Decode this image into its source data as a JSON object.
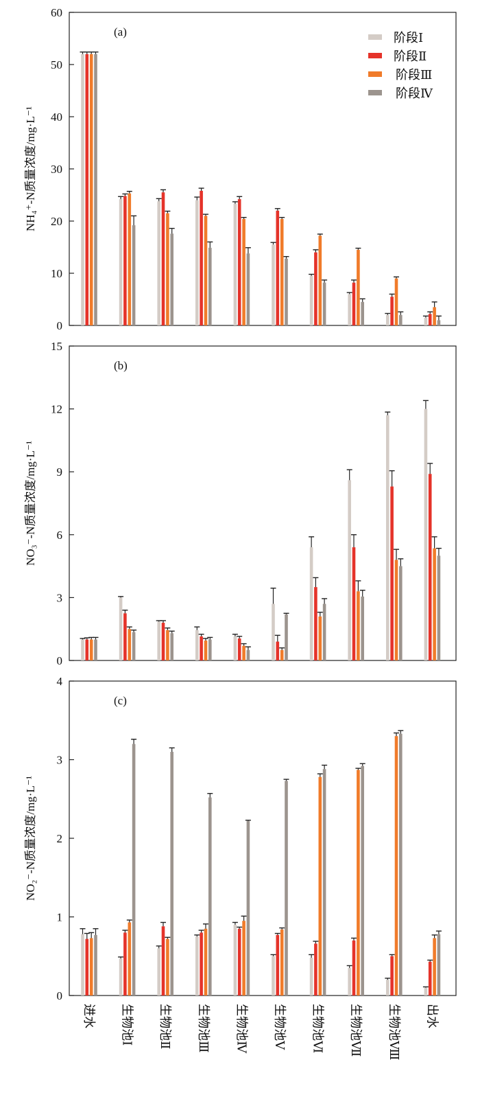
{
  "chart_data": [
    {
      "type": "bar",
      "panel_label": "(a)",
      "ylabel": "NH₄⁺-N质量浓度/mg·L⁻¹",
      "ylim": [
        0,
        60
      ],
      "yticks": [
        "0",
        "10",
        "20",
        "30",
        "40",
        "50",
        "60"
      ],
      "categories": [
        "进水",
        "生物池Ⅰ",
        "生物池Ⅱ",
        "生物池Ⅲ",
        "生物池Ⅳ",
        "生物池Ⅴ",
        "生物池Ⅵ",
        "生物池Ⅶ",
        "生物池Ⅷ",
        "出水"
      ],
      "legend": "top-right",
      "series": [
        {
          "name": "阶段Ⅰ",
          "color": "#d4ccc6",
          "values": [
            52,
            24.2,
            23.8,
            24,
            23.3,
            15.5,
            9.5,
            6,
            2,
            1.5
          ],
          "errors": [
            0.4,
            0.5,
            0.5,
            0.6,
            0.4,
            0.4,
            0.3,
            0.3,
            0.3,
            0.3
          ]
        },
        {
          "name": "阶段Ⅱ",
          "color": "#e5332a",
          "values": [
            52,
            24.8,
            25.5,
            25.8,
            24.2,
            22,
            14,
            8.2,
            5.5,
            2.2
          ],
          "errors": [
            0.4,
            0.4,
            0.5,
            0.5,
            0.5,
            0.4,
            0.5,
            0.5,
            0.5,
            0.4
          ]
        },
        {
          "name": "阶段Ⅲ",
          "color": "#f07b2a",
          "values": [
            52,
            25.3,
            21.5,
            21,
            20.4,
            20.4,
            17.2,
            14.5,
            9,
            3.5
          ],
          "errors": [
            0.4,
            0.4,
            0.4,
            0.3,
            0.3,
            0.3,
            0.3,
            0.3,
            0.3,
            1
          ]
        },
        {
          "name": "阶段Ⅳ",
          "color": "#9c948e",
          "values": [
            52,
            19.2,
            17.6,
            14.9,
            13.8,
            12.8,
            8.2,
            4.5,
            2,
            1
          ],
          "errors": [
            0.4,
            1.8,
            1,
            1.1,
            1.1,
            0.4,
            0.5,
            0.6,
            0.6,
            0.8
          ]
        }
      ]
    },
    {
      "type": "bar",
      "panel_label": "(b)",
      "ylabel": "NO₃⁻-N质量浓度/mg·L⁻¹",
      "ylim": [
        0,
        15
      ],
      "yticks": [
        "0",
        "3",
        "6",
        "9",
        "12",
        "15"
      ],
      "categories": [
        "进水",
        "生物池Ⅰ",
        "生物池Ⅱ",
        "生物池Ⅲ",
        "生物池Ⅳ",
        "生物池Ⅴ",
        "生物池Ⅵ",
        "生物池Ⅶ",
        "生物池Ⅷ",
        "出水"
      ],
      "series": [
        {
          "name": "阶段Ⅰ",
          "color": "#d4ccc6",
          "values": [
            1.0,
            3.0,
            1.85,
            1.45,
            1.15,
            2.7,
            5.4,
            8.6,
            11.7,
            12.0
          ],
          "errors": [
            0.05,
            0.05,
            0.05,
            0.15,
            0.1,
            0.75,
            0.5,
            0.5,
            0.15,
            0.4
          ]
        },
        {
          "name": "阶段Ⅱ",
          "color": "#e5332a",
          "values": [
            1.0,
            2.25,
            1.8,
            1.15,
            1.05,
            0.9,
            3.5,
            5.4,
            8.3,
            8.9
          ],
          "errors": [
            0.08,
            0.15,
            0.1,
            0.1,
            0.1,
            0.3,
            0.45,
            0.6,
            0.75,
            0.5
          ]
        },
        {
          "name": "阶段Ⅲ",
          "color": "#f07b2a",
          "values": [
            1.0,
            1.5,
            1.45,
            0.95,
            0.7,
            0.5,
            2.1,
            3.3,
            4.8,
            5.35
          ],
          "errors": [
            0.1,
            0.1,
            0.1,
            0.1,
            0.1,
            0.1,
            0.2,
            0.5,
            0.5,
            0.55
          ]
        },
        {
          "name": "阶段Ⅳ",
          "color": "#9c948e",
          "values": [
            1.0,
            1.35,
            1.3,
            1.0,
            0.5,
            2.2,
            2.7,
            3.05,
            4.5,
            5.0
          ],
          "errors": [
            0.1,
            0.1,
            0.1,
            0.1,
            0.15,
            0.05,
            0.25,
            0.3,
            0.35,
            0.35
          ]
        }
      ]
    },
    {
      "type": "bar",
      "panel_label": "(c)",
      "ylabel": "NO₂⁻-N质量浓度/mg·L⁻¹",
      "ylim": [
        0,
        4
      ],
      "yticks": [
        "0",
        "1",
        "2",
        "3",
        "4"
      ],
      "categories": [
        "进水",
        "生物池Ⅰ",
        "生物池Ⅱ",
        "生物池Ⅲ",
        "生物池Ⅳ",
        "生物池Ⅴ",
        "生物池Ⅵ",
        "生物池Ⅶ",
        "生物池Ⅷ",
        "出水"
      ],
      "series": [
        {
          "name": "阶段Ⅰ",
          "color": "#d4ccc6",
          "values": [
            0.78,
            0.47,
            0.6,
            0.75,
            0.9,
            0.5,
            0.48,
            0.35,
            0.2,
            0.1
          ],
          "errors": [
            0.07,
            0.02,
            0.03,
            0.02,
            0.03,
            0.02,
            0.04,
            0.03,
            0.02,
            0.01
          ]
        },
        {
          "name": "阶段Ⅱ",
          "color": "#e5332a",
          "values": [
            0.72,
            0.8,
            0.88,
            0.8,
            0.85,
            0.77,
            0.66,
            0.7,
            0.5,
            0.43
          ],
          "errors": [
            0.07,
            0.03,
            0.05,
            0.03,
            0.02,
            0.02,
            0.03,
            0.03,
            0.02,
            0.02
          ]
        },
        {
          "name": "阶段Ⅲ",
          "color": "#f07b2a",
          "values": [
            0.73,
            0.93,
            0.72,
            0.85,
            0.95,
            0.84,
            2.78,
            2.87,
            3.3,
            0.73
          ],
          "errors": [
            0.07,
            0.03,
            0.02,
            0.06,
            0.06,
            0.02,
            0.04,
            0.02,
            0.04,
            0.04
          ]
        },
        {
          "name": "阶段Ⅳ",
          "color": "#9c948e",
          "values": [
            0.77,
            3.2,
            3.1,
            2.52,
            2.22,
            2.73,
            2.88,
            2.92,
            3.33,
            0.78
          ],
          "errors": [
            0.08,
            0.06,
            0.05,
            0.05,
            0.01,
            0.02,
            0.05,
            0.03,
            0.04,
            0.04
          ]
        }
      ]
    }
  ]
}
